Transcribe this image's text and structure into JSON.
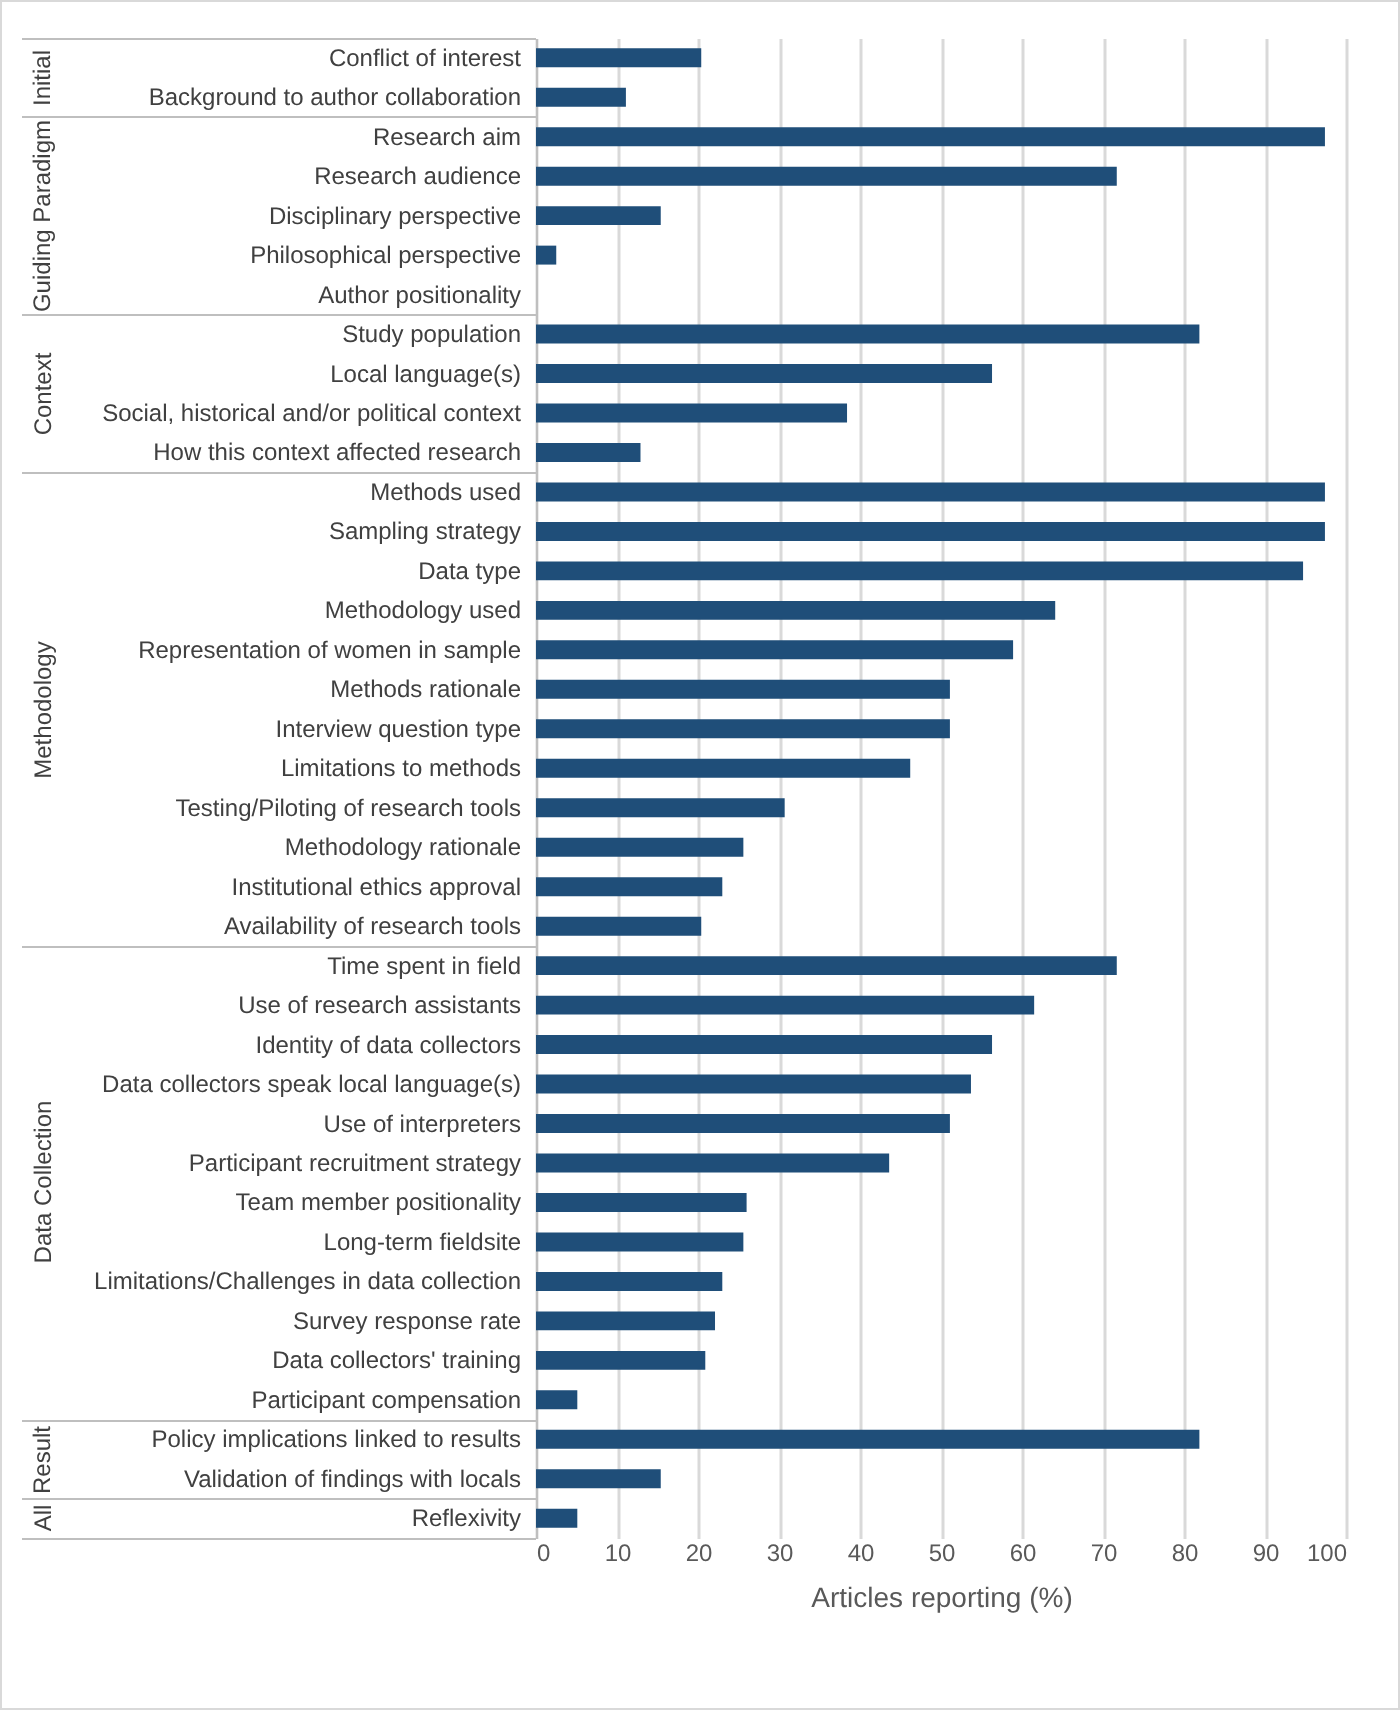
{
  "chart_data": {
    "type": "bar",
    "orientation": "horizontal",
    "xlabel": "Articles reporting (%)",
    "categories": [
      "Conflict of interest",
      "Background to author collaboration",
      "Research aim",
      "Research audience",
      "Disciplinary perspective",
      "Philosophical perspective",
      "Author positionality",
      "Study population",
      "Local language(s)",
      "Social, historical and/or political context",
      "How this context affected research",
      "Methods used",
      "Sampling strategy",
      "Data type",
      "Methodology used",
      "Representation of women in sample",
      "Methods rationale",
      "Interview question type",
      "Limitations to methods",
      "Testing/Piloting of research tools",
      "Methodology rationale",
      "Institutional ethics approval",
      "Availability of research tools",
      "Time spent in field",
      "Use of research assistants",
      "Identity of data collectors",
      "Data collectors speak local language(s)",
      "Use of interpreters",
      "Participant recruitment strategy",
      "Team member positionality",
      "Long-term fieldsite",
      "Limitations/Challenges in data collection",
      "Survey response rate",
      "Data collectors' training",
      "Participant compensation",
      "Policy implications linked to results",
      "Validation of findings with locals",
      "Reflexivity"
    ],
    "values": [
      20.4,
      11.1,
      97.4,
      71.7,
      15.4,
      2.5,
      0,
      81.9,
      56.3,
      38.4,
      12.9,
      97.4,
      97.4,
      94.7,
      64.1,
      58.9,
      51.1,
      51.1,
      46.2,
      30.7,
      25.6,
      23.0,
      20.4,
      71.7,
      61.5,
      56.3,
      53.7,
      51.1,
      43.6,
      26.0,
      25.6,
      23.0,
      22.1,
      20.9,
      5.1,
      81.9,
      15.4,
      5.1
    ],
    "color": "#1f4e79",
    "xlim": [
      0,
      100
    ],
    "xticks": [
      0,
      10,
      20,
      30,
      40,
      50,
      60,
      70,
      80,
      90,
      100
    ],
    "grid": "x",
    "annotations": [
      "Initial",
      "Guiding Paradigm",
      "Context",
      "Methodology",
      "Data Collection",
      "Result",
      "All"
    ]
  }
}
